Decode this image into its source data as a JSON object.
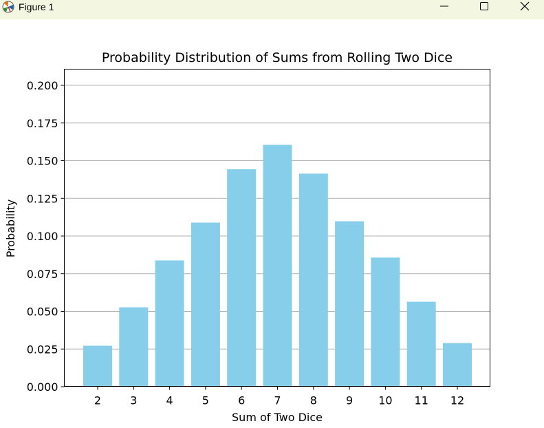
{
  "window": {
    "title": "Figure 1"
  },
  "chart_data": {
    "type": "bar",
    "title": "Probability Distribution of Sums from Rolling Two Dice",
    "xlabel": "Sum of Two Dice",
    "ylabel": "Probability",
    "categories": [
      "2",
      "3",
      "4",
      "5",
      "6",
      "7",
      "8",
      "9",
      "10",
      "11",
      "12"
    ],
    "values": [
      0.0272,
      0.0527,
      0.0838,
      0.1089,
      0.1443,
      0.1605,
      0.1414,
      0.1098,
      0.0857,
      0.0564,
      0.029
    ],
    "ylim": [
      0,
      0.21
    ],
    "yticks": [
      "0.000",
      "0.025",
      "0.050",
      "0.075",
      "0.100",
      "0.125",
      "0.150",
      "0.175",
      "0.200"
    ],
    "bar_color": "#87ceeb",
    "grid": "y-axis on"
  }
}
